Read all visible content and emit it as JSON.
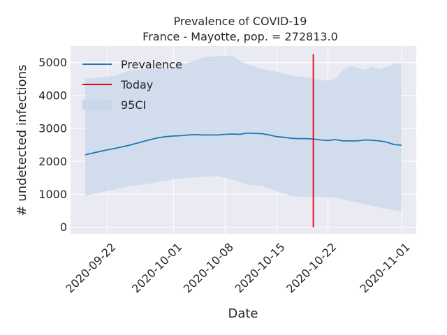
{
  "chart_data": {
    "type": "line",
    "title": "Prevalence of COVID-19",
    "subtitle": "France - Mayotte, pop. = 272813.0",
    "xlabel": "Date",
    "ylabel": "# undetected infections",
    "x_range": [
      "2020-09-17",
      "2020-11-03"
    ],
    "ylim": [
      -200,
      5500
    ],
    "grid": true,
    "legend_position": "top-left",
    "x_ticks": [
      "2020-09-22",
      "2020-10-01",
      "2020-10-08",
      "2020-10-15",
      "2020-10-22",
      "2020-11-01"
    ],
    "y_ticks": [
      0,
      1000,
      2000,
      3000,
      4000,
      5000
    ],
    "y_tick_labels": [
      "0",
      "1000",
      "2000",
      "3000",
      "4000",
      "5000"
    ],
    "today": "2020-10-20",
    "today_line_range": [
      0,
      5250
    ],
    "legend": [
      "Prevalence",
      "Today",
      "95CI"
    ],
    "colors": {
      "prevalence": "#1f77b4",
      "today": "#e8000b",
      "ci": "#c8d7ea",
      "background": "#eaeaf2",
      "grid": "#ffffff"
    },
    "series": [
      {
        "name": "Prevalence",
        "x": [
          "2020-09-19",
          "2020-09-20",
          "2020-09-21",
          "2020-09-22",
          "2020-09-23",
          "2020-09-24",
          "2020-09-25",
          "2020-09-26",
          "2020-09-27",
          "2020-09-28",
          "2020-09-29",
          "2020-09-30",
          "2020-10-01",
          "2020-10-02",
          "2020-10-03",
          "2020-10-04",
          "2020-10-05",
          "2020-10-06",
          "2020-10-07",
          "2020-10-08",
          "2020-10-09",
          "2020-10-10",
          "2020-10-11",
          "2020-10-12",
          "2020-10-13",
          "2020-10-14",
          "2020-10-15",
          "2020-10-16",
          "2020-10-17",
          "2020-10-18",
          "2020-10-19",
          "2020-10-20",
          "2020-10-21",
          "2020-10-22",
          "2020-10-23",
          "2020-10-24",
          "2020-10-25",
          "2020-10-26",
          "2020-10-27",
          "2020-10-28",
          "2020-10-29",
          "2020-10-30",
          "2020-10-31",
          "2020-11-01"
        ],
        "y": [
          2200,
          2250,
          2300,
          2350,
          2390,
          2440,
          2490,
          2550,
          2610,
          2670,
          2720,
          2750,
          2770,
          2780,
          2800,
          2810,
          2800,
          2800,
          2800,
          2820,
          2830,
          2820,
          2860,
          2850,
          2840,
          2800,
          2750,
          2730,
          2700,
          2690,
          2690,
          2680,
          2650,
          2630,
          2660,
          2620,
          2620,
          2620,
          2650,
          2640,
          2620,
          2580,
          2510,
          2490
        ]
      },
      {
        "name": "95CI",
        "x": [
          "2020-09-19",
          "2020-09-21",
          "2020-09-23",
          "2020-09-25",
          "2020-09-27",
          "2020-09-29",
          "2020-10-01",
          "2020-10-03",
          "2020-10-05",
          "2020-10-07",
          "2020-10-09",
          "2020-10-11",
          "2020-10-13",
          "2020-10-15",
          "2020-10-17",
          "2020-10-19",
          "2020-10-21",
          "2020-10-22",
          "2020-10-23",
          "2020-10-24",
          "2020-10-25",
          "2020-10-26",
          "2020-10-27",
          "2020-10-28",
          "2020-10-29",
          "2020-10-30",
          "2020-10-31",
          "2020-11-01"
        ],
        "upper": [
          4500,
          4550,
          4600,
          4750,
          4800,
          4800,
          4850,
          5000,
          5150,
          5200,
          5200,
          4950,
          4800,
          4720,
          4600,
          4550,
          4470,
          4450,
          4500,
          4750,
          4900,
          4850,
          4780,
          4880,
          4800,
          4870,
          4950,
          4980
        ],
        "lower": [
          950,
          1050,
          1150,
          1250,
          1300,
          1380,
          1450,
          1500,
          1530,
          1550,
          1450,
          1300,
          1250,
          1100,
          950,
          920,
          920,
          910,
          900,
          850,
          800,
          750,
          700,
          650,
          600,
          560,
          520,
          490
        ]
      }
    ]
  }
}
